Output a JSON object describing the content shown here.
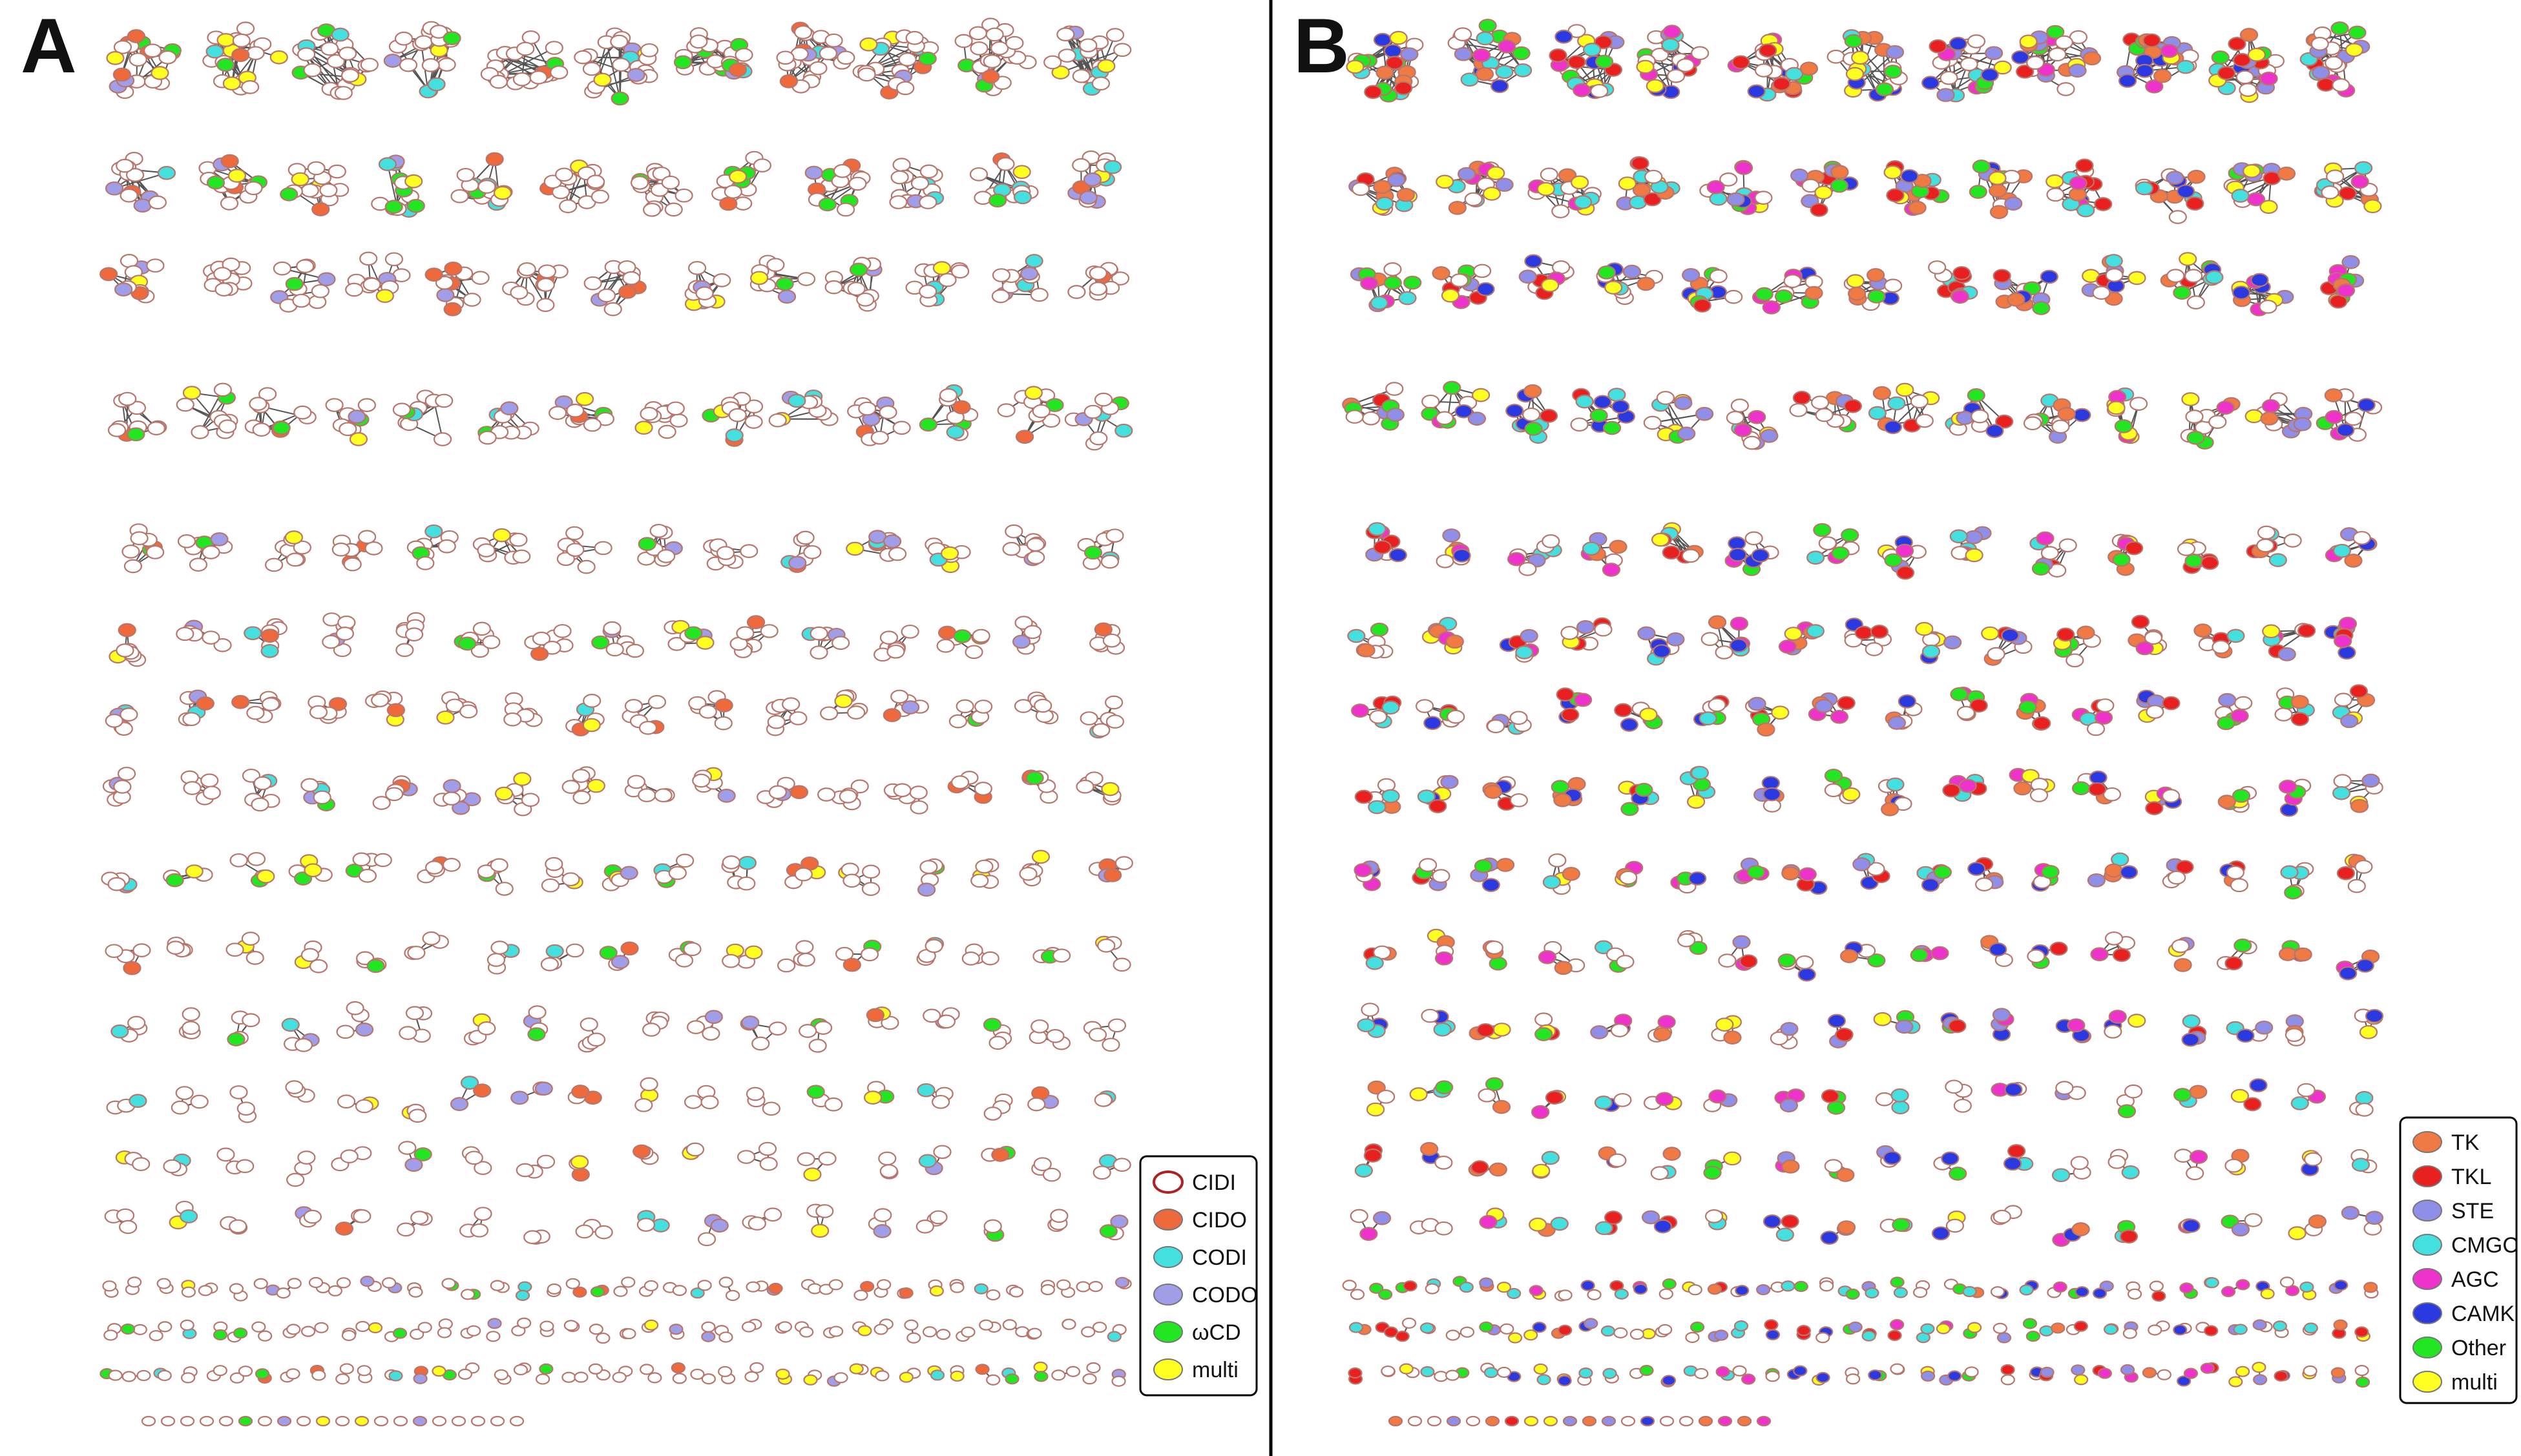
{
  "panels": [
    {
      "id": "A",
      "letter": "A",
      "legend": [
        {
          "label": "CIDI",
          "color": "#ffffff",
          "stroke": "#b02020",
          "hollow": true
        },
        {
          "label": "CIDO",
          "color": "#ee6a3d"
        },
        {
          "label": "CODI",
          "color": "#44e0e0"
        },
        {
          "label": "CODO",
          "color": "#a09ee8"
        },
        {
          "label": "ωCD",
          "color": "#22e622"
        },
        {
          "label": "multi",
          "color": "#ffff22"
        }
      ]
    },
    {
      "id": "B",
      "letter": "B",
      "legend": [
        {
          "label": "TK",
          "color": "#f07a43"
        },
        {
          "label": "TKL",
          "color": "#e82020"
        },
        {
          "label": "STE",
          "color": "#8f8fe8"
        },
        {
          "label": "CMGC",
          "color": "#44e0e0"
        },
        {
          "label": "AGC",
          "color": "#ee33cc"
        },
        {
          "label": "CAMK",
          "color": "#2a3ae0"
        },
        {
          "label": "Other",
          "color": "#22e622"
        },
        {
          "label": "multi",
          "color": "#ffff22"
        }
      ]
    }
  ],
  "divider_color": "#000000"
}
